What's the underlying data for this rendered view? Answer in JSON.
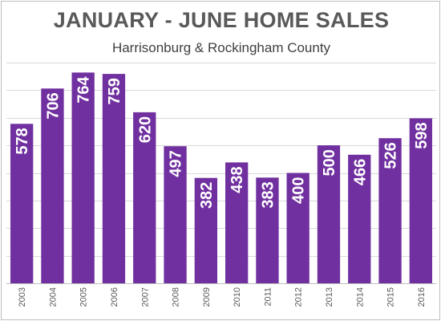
{
  "chart_data": {
    "type": "bar",
    "title": "JANUARY - JUNE HOME SALES",
    "subtitle": "Harrisonburg & Rockingham County",
    "categories": [
      "2003",
      "2004",
      "2005",
      "2006",
      "2007",
      "2008",
      "2009",
      "2010",
      "2011",
      "2012",
      "2013",
      "2014",
      "2015",
      "2016"
    ],
    "values": [
      578,
      706,
      764,
      759,
      620,
      497,
      382,
      438,
      383,
      400,
      500,
      466,
      526,
      598
    ],
    "ylim": [
      0,
      800
    ],
    "grid": true,
    "legend": "none",
    "colors": {
      "bar": "#7030a0",
      "label": "#ffffff",
      "grid": "#d9d9d9",
      "text": "#595959"
    }
  }
}
